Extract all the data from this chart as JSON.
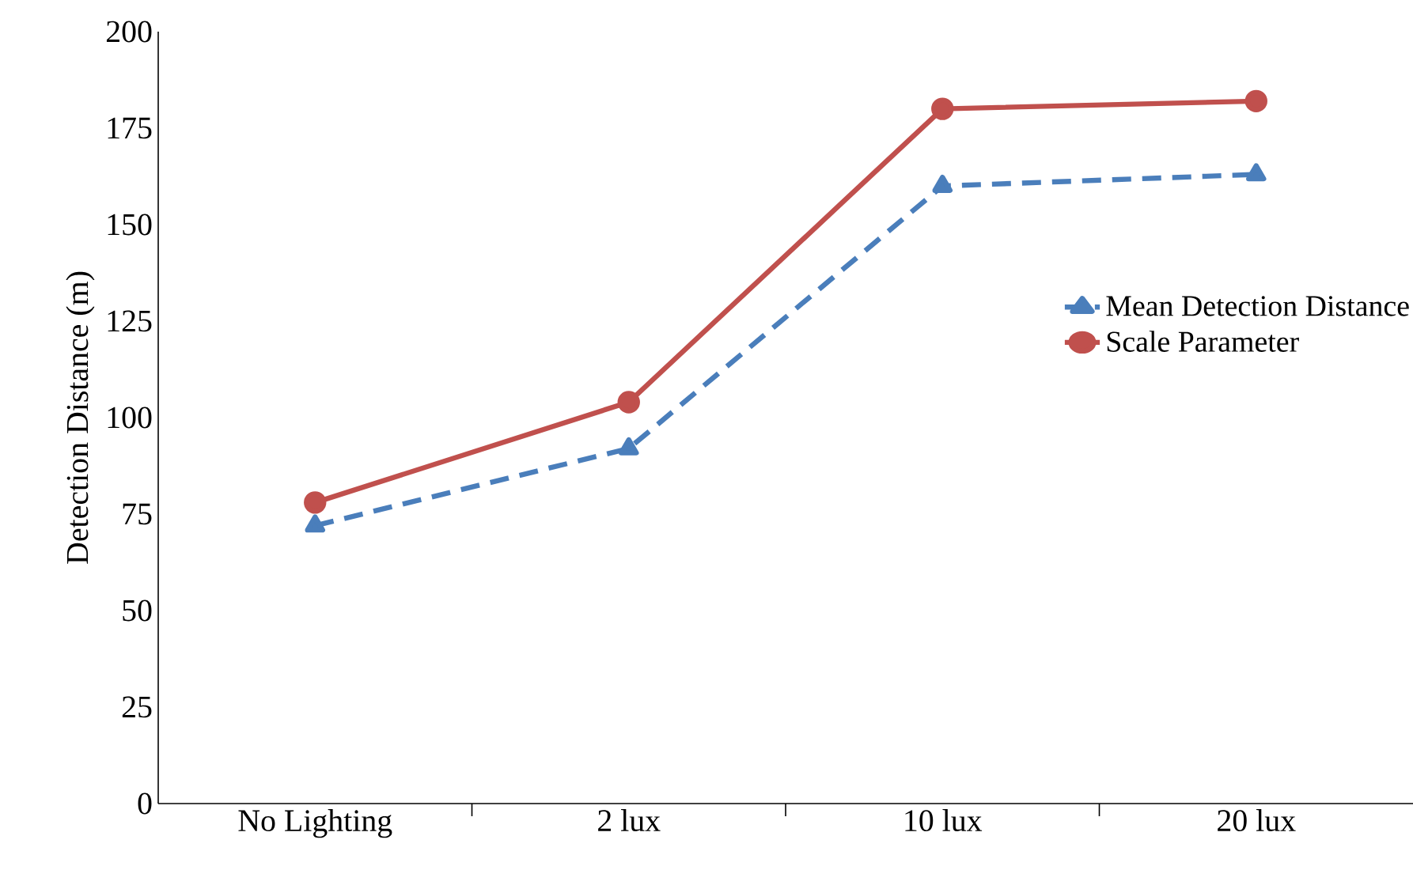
{
  "chart_data": {
    "type": "line",
    "ylabel": "Detection Distance (m)",
    "categories": [
      "No Lighting",
      "2 lux",
      "10 lux",
      "20 lux"
    ],
    "series": [
      {
        "name": "Mean Detection Distance",
        "color": "#4a7ebb",
        "values": [
          72,
          92,
          160,
          163
        ],
        "marker": "triangle",
        "line_style": "dashed"
      },
      {
        "name": "Scale Parameter",
        "color": "#c0504d",
        "values": [
          78,
          104,
          180,
          182
        ],
        "marker": "circle",
        "line_style": "solid"
      }
    ],
    "ylim": [
      0,
      200
    ],
    "yticks": [
      0,
      25,
      50,
      75,
      100,
      125,
      150,
      175,
      200
    ],
    "grid": false,
    "legend": "right"
  }
}
